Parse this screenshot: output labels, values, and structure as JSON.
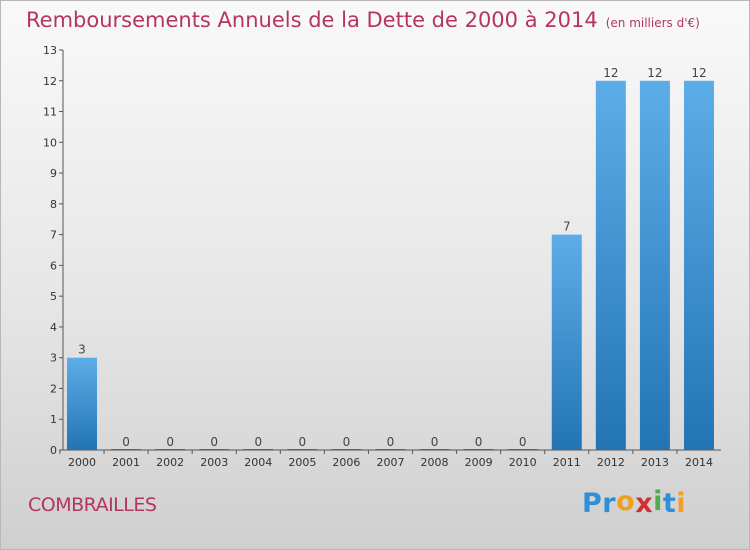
{
  "title": "Remboursements Annuels de la Dette de 2000 à 2014",
  "unit_label": "(en milliers d'€)",
  "place": "COMBRAILLES",
  "logo": {
    "letters": [
      "P",
      "r",
      "o",
      "x",
      "i",
      "t",
      "i"
    ],
    "colors": [
      "#2f8fd8",
      "#2f8fd8",
      "#f0a020",
      "#d23030",
      "#4cae4c",
      "#2f8fd8",
      "#f0a020"
    ]
  },
  "colors": {
    "title": "#b5355f",
    "bar_light": "#5dade8",
    "bar_dark": "#2274b4"
  },
  "chart_data": {
    "type": "bar",
    "title": "Remboursements Annuels de la Dette de 2000 à 2014",
    "categories": [
      "2000",
      "2001",
      "2002",
      "2003",
      "2004",
      "2005",
      "2006",
      "2007",
      "2008",
      "2009",
      "2010",
      "2011",
      "2012",
      "2013",
      "2014"
    ],
    "values": [
      3,
      0,
      0,
      0,
      0,
      0,
      0,
      0,
      0,
      0,
      0,
      7,
      12,
      12,
      12
    ],
    "data_labels": [
      "3",
      "0",
      "0",
      "0",
      "0",
      "0",
      "0",
      "0",
      "0",
      "0",
      "0",
      "7",
      "12",
      "12",
      "12"
    ],
    "ylim": [
      0,
      13
    ],
    "yticks": [
      0,
      1,
      2,
      3,
      4,
      5,
      6,
      7,
      8,
      9,
      10,
      11,
      12,
      13
    ],
    "xlabel": "",
    "ylabel": "",
    "grid": false
  }
}
